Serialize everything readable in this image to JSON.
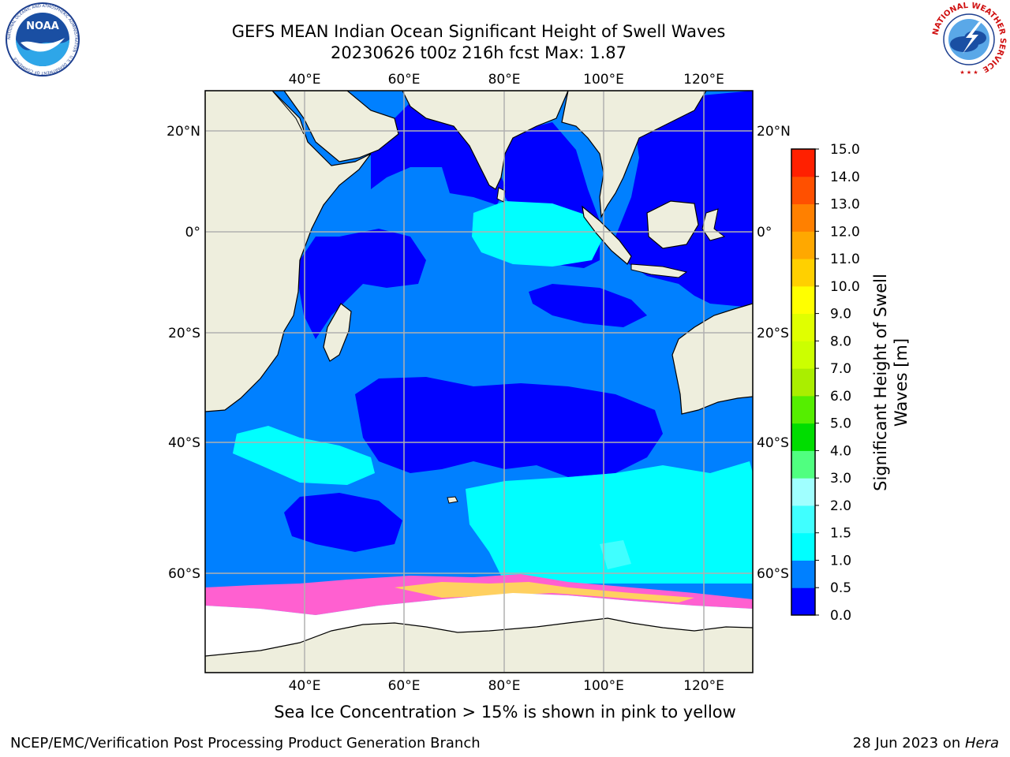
{
  "title_line1": "GEFS MEAN Indian Ocean Significant Height of Swell Waves",
  "title_line2": "20230626 t00z 216h fcst   Max: 1.87",
  "footnote": "Sea Ice Concentration > 15% is shown in pink to yellow",
  "footer_left": "NCEP/EMC/Verification Post Processing Product Generation Branch",
  "footer_date": "28 Jun 2023 on ",
  "footer_machine": "Hera",
  "logo_left_text": "NOAA",
  "logo_left_ring": "NATIONAL OCEANIC AND ATMOSPHERIC ADMINISTRATION · U.S. DEPARTMENT OF COMMERCE",
  "logo_right_ring": "NATIONAL WEATHER SERVICE",
  "map": {
    "lon_labels": [
      "40°E",
      "60°E",
      "80°E",
      "100°E",
      "120°E"
    ],
    "lat_labels": [
      "20°N",
      "0°",
      "20°S",
      "40°S",
      "60°S"
    ],
    "lon_range": [
      20,
      130
    ],
    "lat_range": [
      -78,
      27
    ],
    "colors": {
      "ocean_low": "#0000ff",
      "ocean_mid": "#0080ff",
      "ocean_high": "#00ffff",
      "land": "#eeeedd",
      "ice": "#ffffff"
    }
  },
  "colorbar": {
    "label_line1": "Significant Height of Swell",
    "label_line2": "Waves [m]",
    "ticks": [
      "0.0",
      "0.5",
      "1.0",
      "1.5",
      "2.0",
      "3.0",
      "4.0",
      "5.0",
      "6.0",
      "7.0",
      "8.0",
      "9.0",
      "10.0",
      "11.0",
      "12.0",
      "13.0",
      "14.0",
      "15.0"
    ],
    "colors": [
      "#0000ff",
      "#0080ff",
      "#00ffff",
      "#40ffff",
      "#a0ffff",
      "#50ff80",
      "#00dd00",
      "#55ee00",
      "#aaee00",
      "#ccff00",
      "#e0ff00",
      "#ffff00",
      "#ffd000",
      "#ffa800",
      "#ff8000",
      "#ff5000",
      "#ff2000",
      "#ff0000"
    ]
  }
}
